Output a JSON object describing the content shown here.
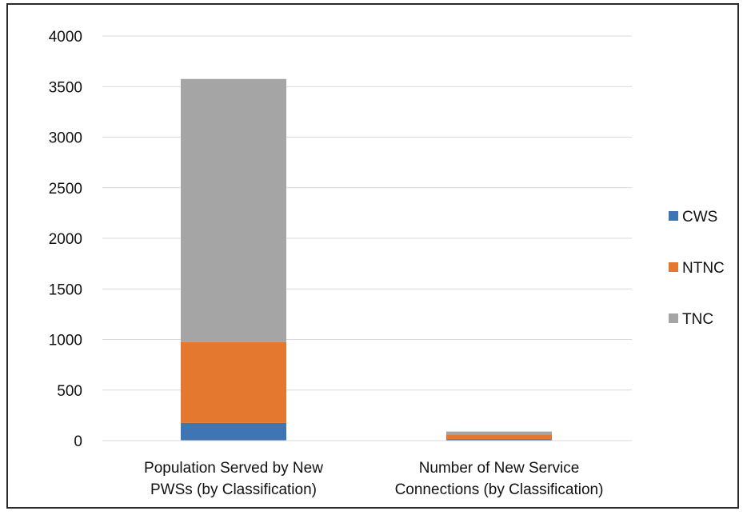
{
  "chart_data": {
    "type": "bar",
    "stacked": true,
    "categories": [
      [
        "Population Served by New",
        "PWSs (by Classification)"
      ],
      [
        "Number of New Service",
        "Connections (by Classification)"
      ]
    ],
    "series": [
      {
        "name": "CWS",
        "values": [
          175,
          15
        ],
        "color": "#3f74b5"
      },
      {
        "name": "NTNC",
        "values": [
          800,
          45
        ],
        "color": "#e4782e"
      },
      {
        "name": "TNC",
        "values": [
          2600,
          30
        ],
        "color": "#a5a5a5"
      }
    ],
    "y_ticks": [
      0,
      500,
      1000,
      1500,
      2000,
      2500,
      3000,
      3500,
      4000
    ],
    "ylim": [
      0,
      4000
    ],
    "grid": true,
    "legend_position": "right"
  }
}
